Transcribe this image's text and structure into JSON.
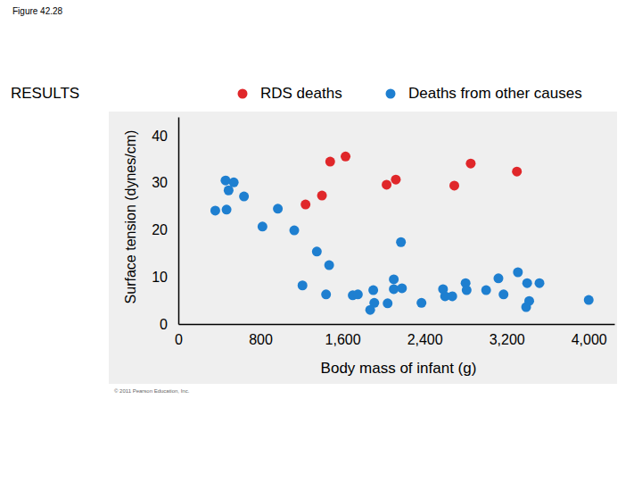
{
  "chart_data": {
    "type": "scatter",
    "title": "RESULTS",
    "annotations": [
      "Figure 42.28",
      "© 2011 Pearson Education, Inc."
    ],
    "x_label": "Body mass of infant (g)",
    "y_label": "Surface tension (dynes/cm)",
    "xlim": [
      0,
      4250
    ],
    "ylim": [
      0,
      44
    ],
    "xticks": [
      0,
      800,
      {
        "value": 1600,
        "label": "1,600"
      },
      {
        "value": 2400,
        "label": "2,400"
      },
      {
        "value": 3200,
        "label": "3,200"
      },
      {
        "value": 4000,
        "label": "4,000"
      }
    ],
    "yticks": [
      0,
      10,
      20,
      30,
      40
    ],
    "grid": false,
    "series": [
      {
        "name": "RDS deaths",
        "color": "#e0272a",
        "marker": "circle",
        "x": [
          1480,
          1630,
          1240,
          1400,
          2030,
          2120,
          2690,
          2850,
          3300
        ],
        "values": [
          34.5,
          35.6,
          25.4,
          27.3,
          29.6,
          30.7,
          29.4,
          34.1,
          32.4
        ]
      },
      {
        "name": "Deaths from other causes",
        "color": "#1e7fd0",
        "marker": "circle",
        "x": [
          360,
          470,
          460,
          540,
          490,
          640,
          820,
          970,
          1130,
          1210,
          1350,
          1470,
          1440,
          1700,
          1750,
          1900,
          1910,
          1870,
          2040,
          2100,
          2100,
          2180,
          2170,
          2370,
          2580,
          2600,
          2670,
          2800,
          2810,
          3000,
          3120,
          3170,
          3310,
          3400,
          3420,
          3390,
          3520,
          4000
        ],
        "values": [
          24.1,
          24.3,
          30.5,
          30.1,
          28.4,
          27.1,
          20.7,
          24.5,
          19.9,
          8.2,
          15.4,
          12.5,
          6.3,
          6.1,
          6.3,
          7.2,
          4.5,
          3.0,
          4.4,
          9.5,
          7.4,
          7.6,
          17.4,
          4.5,
          7.4,
          5.9,
          5.9,
          8.7,
          7.2,
          7.2,
          9.7,
          6.3,
          11.0,
          8.7,
          4.9,
          3.6,
          8.7,
          5.1
        ]
      }
    ]
  }
}
